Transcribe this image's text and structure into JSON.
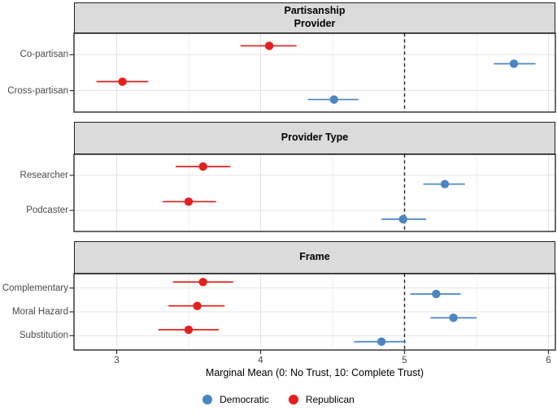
{
  "chart_data": {
    "type": "scatter",
    "subtype": "dot-and-whisker forest plot, horizontal, faceted",
    "title": "",
    "xlabel": "Marginal Mean (0: No Trust, 10: Complete Trust)",
    "ylabel": "",
    "xlim": [
      2.7,
      6.05
    ],
    "x_ticks": [
      3,
      4,
      5,
      6
    ],
    "x_minor_gridlines": [
      3.5,
      4.5,
      5.5
    ],
    "reference_line_x": 5,
    "reference_line_style": "dashed",
    "grid": "on",
    "legend_position": "bottom-center",
    "colors": {
      "democratic": "#4A86C4",
      "republican": "#E3201E",
      "strip_background": "#DBDBDB",
      "gridline": "#E4E4E4",
      "panel_border": "#2B2B2B"
    },
    "legend": [
      {
        "label": "Democratic",
        "color": "#4A86C4"
      },
      {
        "label": "Republican",
        "color": "#E3201E"
      }
    ],
    "panels": [
      {
        "title_lines": [
          "Partisanship",
          "Provider"
        ],
        "categories": [
          "Co-partisan",
          "Cross-partisan"
        ],
        "series": [
          {
            "name": "Democratic",
            "color": "#4A86C4",
            "points": [
              {
                "mean": 5.76,
                "lo": 5.62,
                "hi": 5.91
              },
              {
                "mean": 4.51,
                "lo": 4.33,
                "hi": 4.68
              }
            ]
          },
          {
            "name": "Republican",
            "color": "#E3201E",
            "points": [
              {
                "mean": 4.06,
                "lo": 3.86,
                "hi": 4.25
              },
              {
                "mean": 3.04,
                "lo": 2.86,
                "hi": 3.22
              }
            ]
          }
        ]
      },
      {
        "title_lines": [
          "Provider Type"
        ],
        "categories": [
          "Researcher",
          "Podcaster"
        ],
        "series": [
          {
            "name": "Democratic",
            "color": "#4A86C4",
            "points": [
              {
                "mean": 5.28,
                "lo": 5.13,
                "hi": 5.42
              },
              {
                "mean": 4.99,
                "lo": 4.84,
                "hi": 5.15
              }
            ]
          },
          {
            "name": "Republican",
            "color": "#E3201E",
            "points": [
              {
                "mean": 3.6,
                "lo": 3.41,
                "hi": 3.79
              },
              {
                "mean": 3.5,
                "lo": 3.32,
                "hi": 3.69
              }
            ]
          }
        ]
      },
      {
        "title_lines": [
          "Frame"
        ],
        "categories": [
          "Complementary",
          "Moral Hazard",
          "Substitution"
        ],
        "series": [
          {
            "name": "Democratic",
            "color": "#4A86C4",
            "points": [
              {
                "mean": 5.22,
                "lo": 5.04,
                "hi": 5.39
              },
              {
                "mean": 5.34,
                "lo": 5.18,
                "hi": 5.5
              },
              {
                "mean": 4.84,
                "lo": 4.65,
                "hi": 5.01
              }
            ]
          },
          {
            "name": "Republican",
            "color": "#E3201E",
            "points": [
              {
                "mean": 3.6,
                "lo": 3.39,
                "hi": 3.81
              },
              {
                "mean": 3.56,
                "lo": 3.36,
                "hi": 3.75
              },
              {
                "mean": 3.5,
                "lo": 3.29,
                "hi": 3.71
              }
            ]
          }
        ]
      }
    ]
  }
}
